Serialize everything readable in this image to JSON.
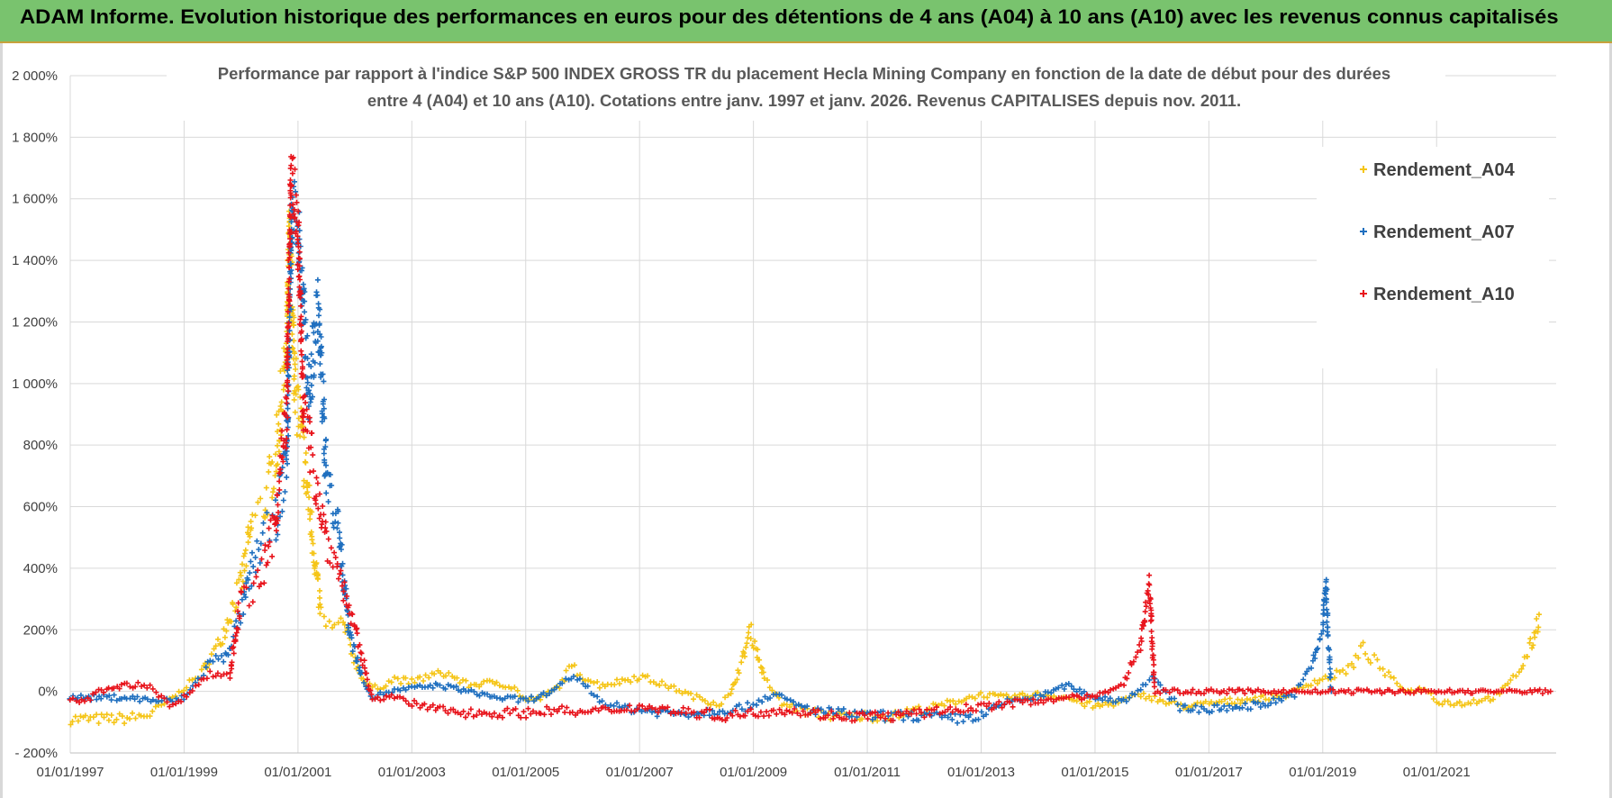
{
  "header": {
    "title": "ADAM Informe. Evolution historique des performances en euros pour des détentions de 4 ans (A04) à 10 ans (A10) avec les revenus connus capitalisés"
  },
  "colors": {
    "title_bg": "#79c36e",
    "A04": "#f5c518",
    "A07": "#1f6fbf",
    "A10": "#e8141c",
    "grid": "#d9d9d9"
  },
  "chart_data": {
    "type": "scatter",
    "title_lines": [
      "Performance par rapport à l'indice S&P 500 INDEX GROSS TR  du placement Hecla Mining Company en fonction de la date de début pour des durées",
      "entre 4 (A04) et 10 ans (A10). Cotations entre janv. 1997 et janv. 2026. Revenus CAPITALISES depuis nov. 2011."
    ],
    "x_ticks": [
      "01/01/1997",
      "01/01/1999",
      "01/01/2001",
      "01/01/2003",
      "01/01/2005",
      "01/01/2007",
      "01/01/2009",
      "01/01/2011",
      "01/01/2013",
      "01/01/2015",
      "01/01/2017",
      "01/01/2019",
      "01/01/2021"
    ],
    "y_ticks": [
      "- 200%",
      "0%",
      "200%",
      "400%",
      "600%",
      "800%",
      "1 000%",
      "1 200%",
      "1 400%",
      "1 600%",
      "1 800%",
      "2 000%"
    ],
    "xlim": [
      1997.0,
      2023.1
    ],
    "ylim": [
      -200,
      2000
    ],
    "grid": true,
    "legend_position": "top-right",
    "series": [
      {
        "name": "Rendement_A04",
        "points": [
          [
            1997.0,
            -90
          ],
          [
            1997.5,
            -90
          ],
          [
            1998.0,
            -88
          ],
          [
            1998.4,
            -75
          ],
          [
            1998.8,
            -20
          ],
          [
            1999.0,
            10
          ],
          [
            1999.3,
            60
          ],
          [
            1999.6,
            150
          ],
          [
            1999.8,
            250
          ],
          [
            2000.0,
            350
          ],
          [
            2000.2,
            550
          ],
          [
            2000.4,
            600
          ],
          [
            2000.6,
            750
          ],
          [
            2000.8,
            1100
          ],
          [
            2000.85,
            1500
          ],
          [
            2000.95,
            1000
          ],
          [
            2001.05,
            850
          ],
          [
            2001.2,
            600
          ],
          [
            2001.4,
            250
          ],
          [
            2001.6,
            200
          ],
          [
            2001.8,
            220
          ],
          [
            2002.0,
            100
          ],
          [
            2002.2,
            20
          ],
          [
            2002.4,
            10
          ],
          [
            2002.7,
            40
          ],
          [
            2003.0,
            30
          ],
          [
            2003.3,
            50
          ],
          [
            2003.6,
            60
          ],
          [
            2004.0,
            20
          ],
          [
            2004.5,
            30
          ],
          [
            2004.8,
            10
          ],
          [
            2005.0,
            -30
          ],
          [
            2005.3,
            -20
          ],
          [
            2005.6,
            20
          ],
          [
            2005.8,
            80
          ],
          [
            2006.0,
            50
          ],
          [
            2006.3,
            20
          ],
          [
            2006.6,
            30
          ],
          [
            2007.0,
            50
          ],
          [
            2007.3,
            30
          ],
          [
            2007.6,
            10
          ],
          [
            2008.0,
            -20
          ],
          [
            2008.4,
            -40
          ],
          [
            2008.6,
            -10
          ],
          [
            2008.8,
            100
          ],
          [
            2008.95,
            200
          ],
          [
            2009.2,
            40
          ],
          [
            2009.5,
            -40
          ],
          [
            2010.0,
            -70
          ],
          [
            2010.5,
            -80
          ],
          [
            2011.0,
            -80
          ],
          [
            2011.5,
            -80
          ],
          [
            2011.8,
            -60
          ],
          [
            2012.0,
            -60
          ],
          [
            2012.4,
            -40
          ],
          [
            2012.8,
            -20
          ],
          [
            2013.0,
            -10
          ],
          [
            2013.4,
            -20
          ],
          [
            2014.0,
            -10
          ],
          [
            2014.5,
            -20
          ],
          [
            2015.0,
            -50
          ],
          [
            2015.5,
            -30
          ],
          [
            2015.8,
            -10
          ],
          [
            2016.0,
            -20
          ],
          [
            2016.3,
            -40
          ],
          [
            2016.7,
            -50
          ],
          [
            2017.0,
            -40
          ],
          [
            2017.5,
            -30
          ],
          [
            2018.0,
            -20
          ],
          [
            2018.4,
            -10
          ],
          [
            2018.8,
            30
          ],
          [
            2019.2,
            50
          ],
          [
            2019.5,
            80
          ],
          [
            2019.7,
            140
          ],
          [
            2019.9,
            100
          ],
          [
            2020.2,
            40
          ],
          [
            2020.5,
            0
          ],
          [
            2020.8,
            10
          ],
          [
            2021.0,
            -30
          ],
          [
            2021.4,
            -40
          ],
          [
            2021.7,
            -30
          ],
          [
            2022.0,
            -20
          ],
          [
            2022.3,
            30
          ],
          [
            2022.5,
            80
          ],
          [
            2022.7,
            170
          ],
          [
            2022.8,
            250
          ]
        ]
      },
      {
        "name": "Rendement_A07",
        "points": [
          [
            1997.0,
            -20
          ],
          [
            1997.5,
            -20
          ],
          [
            1998.0,
            -20
          ],
          [
            1998.5,
            -30
          ],
          [
            1998.8,
            -30
          ],
          [
            1999.0,
            -20
          ],
          [
            1999.3,
            50
          ],
          [
            1999.5,
            110
          ],
          [
            1999.7,
            100
          ],
          [
            2000.0,
            250
          ],
          [
            2000.2,
            400
          ],
          [
            2000.4,
            500
          ],
          [
            2000.6,
            550
          ],
          [
            2000.8,
            750
          ],
          [
            2000.9,
            1600
          ],
          [
            2001.0,
            1500
          ],
          [
            2001.2,
            950
          ],
          [
            2001.35,
            1250
          ],
          [
            2001.5,
            700
          ],
          [
            2001.7,
            550
          ],
          [
            2001.9,
            200
          ],
          [
            2002.1,
            60
          ],
          [
            2002.3,
            -20
          ],
          [
            2002.6,
            0
          ],
          [
            2003.0,
            10
          ],
          [
            2003.5,
            20
          ],
          [
            2004.0,
            0
          ],
          [
            2004.5,
            -20
          ],
          [
            2005.0,
            -30
          ],
          [
            2005.5,
            0
          ],
          [
            2005.8,
            50
          ],
          [
            2006.0,
            30
          ],
          [
            2006.3,
            -30
          ],
          [
            2006.6,
            -50
          ],
          [
            2007.0,
            -60
          ],
          [
            2007.5,
            -70
          ],
          [
            2008.0,
            -70
          ],
          [
            2008.5,
            -60
          ],
          [
            2008.9,
            -50
          ],
          [
            2009.2,
            -20
          ],
          [
            2009.4,
            -10
          ],
          [
            2009.7,
            -40
          ],
          [
            2010.0,
            -60
          ],
          [
            2010.5,
            -70
          ],
          [
            2011.0,
            -80
          ],
          [
            2011.5,
            -80
          ],
          [
            2012.0,
            -80
          ],
          [
            2012.5,
            -90
          ],
          [
            2013.0,
            -80
          ],
          [
            2013.5,
            -30
          ],
          [
            2014.0,
            -20
          ],
          [
            2014.5,
            20
          ],
          [
            2015.0,
            -20
          ],
          [
            2015.5,
            -30
          ],
          [
            2015.8,
            10
          ],
          [
            2016.0,
            50
          ],
          [
            2016.2,
            0
          ],
          [
            2016.5,
            -50
          ],
          [
            2017.0,
            -60
          ],
          [
            2017.5,
            -50
          ],
          [
            2018.0,
            -40
          ],
          [
            2018.5,
            -10
          ],
          [
            2018.8,
            80
          ],
          [
            2019.0,
            200
          ],
          [
            2019.05,
            360
          ],
          [
            2019.15,
            0
          ]
        ]
      },
      {
        "name": "Rendement_A10",
        "points": [
          [
            1997.0,
            -30
          ],
          [
            1997.3,
            -30
          ],
          [
            1997.5,
            0
          ],
          [
            1998.0,
            20
          ],
          [
            1998.4,
            20
          ],
          [
            1998.7,
            -40
          ],
          [
            1998.9,
            -40
          ],
          [
            1999.2,
            20
          ],
          [
            1999.5,
            60
          ],
          [
            1999.8,
            50
          ],
          [
            2000.0,
            300
          ],
          [
            2000.2,
            320
          ],
          [
            2000.4,
            400
          ],
          [
            2000.6,
            550
          ],
          [
            2000.8,
            900
          ],
          [
            2000.88,
            1700
          ],
          [
            2001.0,
            1500
          ],
          [
            2001.1,
            900
          ],
          [
            2001.3,
            700
          ],
          [
            2001.5,
            500
          ],
          [
            2001.7,
            400
          ],
          [
            2002.0,
            200
          ],
          [
            2002.3,
            -20
          ],
          [
            2002.7,
            -20
          ],
          [
            2003.0,
            -40
          ],
          [
            2003.5,
            -60
          ],
          [
            2004.0,
            -70
          ],
          [
            2004.5,
            -70
          ],
          [
            2005.0,
            -70
          ],
          [
            2005.5,
            -60
          ],
          [
            2006.0,
            -70
          ],
          [
            2006.5,
            -60
          ],
          [
            2007.0,
            -50
          ],
          [
            2007.5,
            -60
          ],
          [
            2008.0,
            -70
          ],
          [
            2008.5,
            -80
          ],
          [
            2009.0,
            -70
          ],
          [
            2009.5,
            -60
          ],
          [
            2010.0,
            -70
          ],
          [
            2010.5,
            -80
          ],
          [
            2011.0,
            -80
          ],
          [
            2011.5,
            -80
          ],
          [
            2012.0,
            -70
          ],
          [
            2012.5,
            -60
          ],
          [
            2013.0,
            -50
          ],
          [
            2013.5,
            -40
          ],
          [
            2014.0,
            -30
          ],
          [
            2014.5,
            -20
          ],
          [
            2015.0,
            -20
          ],
          [
            2015.5,
            30
          ],
          [
            2015.8,
            150
          ],
          [
            2015.95,
            350
          ],
          [
            2016.05,
            0
          ],
          [
            2016.5,
            0
          ],
          [
            2017.0,
            0
          ],
          [
            2017.5,
            0
          ],
          [
            2018.0,
            0
          ],
          [
            2018.5,
            0
          ],
          [
            2019.0,
            0
          ],
          [
            2019.5,
            0
          ],
          [
            2020.0,
            0
          ],
          [
            2020.5,
            0
          ],
          [
            2021.0,
            0
          ],
          [
            2021.5,
            0
          ],
          [
            2022.0,
            0
          ],
          [
            2022.5,
            0
          ],
          [
            2023.0,
            0
          ]
        ]
      }
    ]
  }
}
